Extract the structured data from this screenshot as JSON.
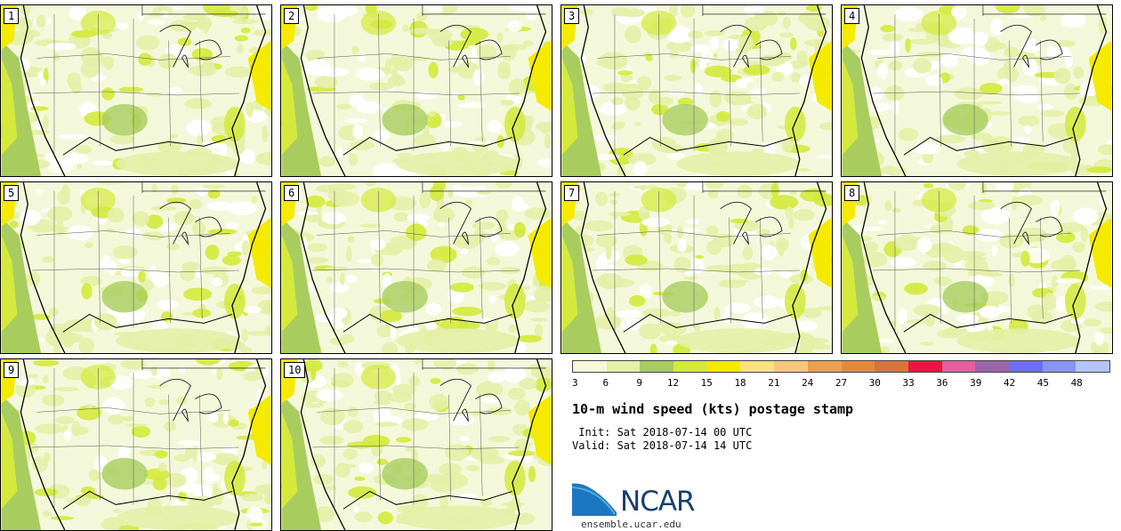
{
  "panels": [
    {
      "label": "1"
    },
    {
      "label": "2"
    },
    {
      "label": "3"
    },
    {
      "label": "4"
    },
    {
      "label": "5"
    },
    {
      "label": "6"
    },
    {
      "label": "7"
    },
    {
      "label": "8"
    },
    {
      "label": "9"
    },
    {
      "label": "10"
    }
  ],
  "colorbar": {
    "colors": [
      "#f6f9d8",
      "#e3f0a6",
      "#a8cd5e",
      "#d4e93c",
      "#f5ea00",
      "#fbe27f",
      "#f7c77a",
      "#ec9f4e",
      "#e4893b",
      "#d8743c",
      "#e9163f",
      "#e45ea0",
      "#9b66a8",
      "#6b6ef0",
      "#8894f6",
      "#b5c4f8"
    ],
    "ticks": [
      "3",
      "6",
      "9",
      "12",
      "15",
      "18",
      "21",
      "24",
      "27",
      "30",
      "33",
      "36",
      "39",
      "42",
      "45",
      "48"
    ]
  },
  "title": "10-m wind speed (kts) postage stamp",
  "init": " Init: Sat 2018-07-14 00 UTC",
  "valid": "Valid: Sat 2018-07-14 14 UTC",
  "logo": {
    "text": "NCAR",
    "url": "ensemble.ucar.edu"
  }
}
